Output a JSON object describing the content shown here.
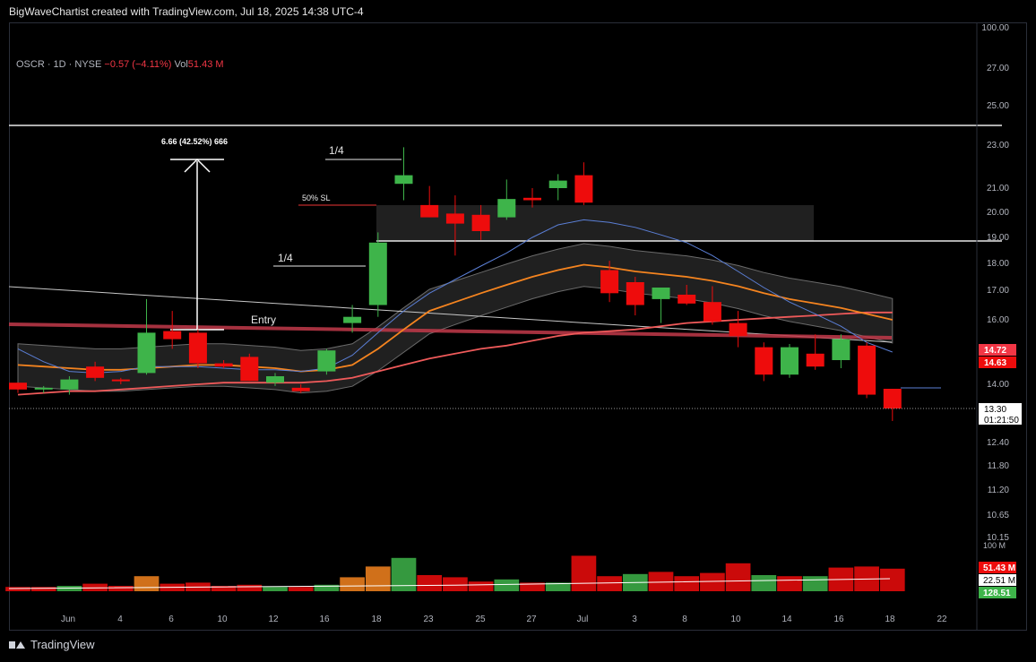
{
  "header": {
    "attribution": "BigWaveChartist created with TradingView.com, Jul 18, 2025 14:38 UTC-4"
  },
  "legend": {
    "symbol": "OSCR · 1D · NYSE",
    "change": "−0.57 (−4.11%)",
    "vol_label": "Vol",
    "vol_value": "51.43 M"
  },
  "footer": {
    "brand": "TradingView"
  },
  "colors": {
    "up": "#3eb44a",
    "down": "#ee0c0c",
    "ema_fast": "#5b7fd6",
    "ema_mid": "#f5841f",
    "ema_slow": "#ef5a5a",
    "trendline": "#c23a4a"
  },
  "chart_data": {
    "type": "candlestick",
    "price_axis": {
      "ticks": [
        "100.00",
        "27.00",
        "25.00",
        "23.00",
        "21.00",
        "20.00",
        "19.00",
        "18.00",
        "17.00",
        "16.00",
        "14.00",
        "12.40",
        "11.80",
        "11.20",
        "10.65",
        "10.15"
      ],
      "labels": [
        {
          "text": "14.72",
          "color": "#f23645"
        },
        {
          "text": "14.63",
          "color": "#ee0c0c"
        },
        {
          "text": "13.30",
          "color": "#000000"
        },
        {
          "text": "01:21:50",
          "color": "#000000"
        }
      ]
    },
    "volume_axis": {
      "top_label": "100 M",
      "labels": [
        {
          "text": "51.43 M",
          "color": "#ee0c0c"
        },
        {
          "text": "22.51 M",
          "color": "#ffffff"
        },
        {
          "text": "128.51",
          "color": "#3eb44a"
        }
      ]
    },
    "x_labels": [
      "Jun",
      "4",
      "6",
      "10",
      "12",
      "16",
      "18",
      "23",
      "25",
      "27",
      "Jul",
      "3",
      "8",
      "10",
      "14",
      "16",
      "18",
      "22"
    ],
    "candles": [
      {
        "o": 14.05,
        "h": 14.05,
        "l": 13.75,
        "c": 13.85
      },
      {
        "o": 13.85,
        "h": 13.95,
        "l": 13.75,
        "c": 13.9
      },
      {
        "o": 13.85,
        "h": 14.25,
        "l": 13.7,
        "c": 14.15
      },
      {
        "o": 14.55,
        "h": 14.7,
        "l": 14.1,
        "c": 14.2
      },
      {
        "o": 14.15,
        "h": 14.2,
        "l": 14.0,
        "c": 14.1
      },
      {
        "o": 14.35,
        "h": 16.7,
        "l": 14.3,
        "c": 15.6
      },
      {
        "o": 15.65,
        "h": 16.3,
        "l": 15.1,
        "c": 15.4
      },
      {
        "o": 15.6,
        "h": 15.7,
        "l": 14.5,
        "c": 14.65
      },
      {
        "o": 14.65,
        "h": 14.75,
        "l": 14.5,
        "c": 14.55
      },
      {
        "o": 14.85,
        "h": 14.95,
        "l": 14.1,
        "c": 14.1
      },
      {
        "o": 14.05,
        "h": 14.35,
        "l": 13.95,
        "c": 14.25
      },
      {
        "o": 13.9,
        "h": 14.0,
        "l": 13.75,
        "c": 13.8
      },
      {
        "o": 14.4,
        "h": 15.1,
        "l": 14.3,
        "c": 15.05
      },
      {
        "o": 15.9,
        "h": 16.5,
        "l": 15.6,
        "c": 16.1
      },
      {
        "o": 16.5,
        "h": 19.2,
        "l": 16.1,
        "c": 18.8
      },
      {
        "o": 21.2,
        "h": 22.9,
        "l": 20.5,
        "c": 21.6
      },
      {
        "o": 20.3,
        "h": 21.1,
        "l": 19.8,
        "c": 19.8
      },
      {
        "o": 19.95,
        "h": 20.7,
        "l": 18.3,
        "c": 19.55
      },
      {
        "o": 19.9,
        "h": 20.3,
        "l": 18.9,
        "c": 19.25
      },
      {
        "o": 19.8,
        "h": 21.4,
        "l": 19.7,
        "c": 20.55
      },
      {
        "o": 20.6,
        "h": 21.0,
        "l": 20.2,
        "c": 20.5
      },
      {
        "o": 21.0,
        "h": 21.65,
        "l": 20.5,
        "c": 21.35
      },
      {
        "o": 21.6,
        "h": 22.2,
        "l": 20.3,
        "c": 20.4
      },
      {
        "o": 17.75,
        "h": 18.1,
        "l": 16.6,
        "c": 16.9
      },
      {
        "o": 17.3,
        "h": 17.5,
        "l": 16.15,
        "c": 16.5
      },
      {
        "o": 16.7,
        "h": 17.05,
        "l": 15.9,
        "c": 17.1
      },
      {
        "o": 16.85,
        "h": 17.2,
        "l": 16.5,
        "c": 16.55
      },
      {
        "o": 16.6,
        "h": 17.15,
        "l": 15.85,
        "c": 15.95
      },
      {
        "o": 15.9,
        "h": 16.3,
        "l": 15.15,
        "c": 15.5
      },
      {
        "o": 15.15,
        "h": 15.3,
        "l": 14.1,
        "c": 14.3
      },
      {
        "o": 14.3,
        "h": 15.25,
        "l": 14.2,
        "c": 15.15
      },
      {
        "o": 14.95,
        "h": 15.55,
        "l": 14.45,
        "c": 14.55
      },
      {
        "o": 14.75,
        "h": 15.55,
        "l": 14.5,
        "c": 15.4
      },
      {
        "o": 15.2,
        "h": 15.3,
        "l": 13.6,
        "c": 13.7
      },
      {
        "o": 13.87,
        "h": 13.87,
        "l": 12.97,
        "c": 13.3
      }
    ],
    "volume_pct": [
      {
        "v": 4,
        "up": false
      },
      {
        "v": 4,
        "up": false
      },
      {
        "v": 5,
        "up": true
      },
      {
        "v": 7,
        "up": false
      },
      {
        "v": 5,
        "up": false
      },
      {
        "v": 14,
        "up": true,
        "color": "#f5841f"
      },
      {
        "v": 7,
        "up": false
      },
      {
        "v": 8,
        "up": false
      },
      {
        "v": 5,
        "up": false
      },
      {
        "v": 6,
        "up": false
      },
      {
        "v": 4,
        "up": true
      },
      {
        "v": 4,
        "up": false
      },
      {
        "v": 6,
        "up": true
      },
      {
        "v": 13,
        "up": true,
        "color": "#f5841f"
      },
      {
        "v": 23,
        "up": true,
        "color": "#f5841f"
      },
      {
        "v": 31,
        "up": true
      },
      {
        "v": 15,
        "up": false
      },
      {
        "v": 13,
        "up": false
      },
      {
        "v": 9,
        "up": false
      },
      {
        "v": 11,
        "up": true
      },
      {
        "v": 8,
        "up": false
      },
      {
        "v": 8,
        "up": true
      },
      {
        "v": 33,
        "up": false
      },
      {
        "v": 14,
        "up": false
      },
      {
        "v": 16,
        "up": true
      },
      {
        "v": 18,
        "up": false
      },
      {
        "v": 14,
        "up": false
      },
      {
        "v": 17,
        "up": false
      },
      {
        "v": 26,
        "up": false
      },
      {
        "v": 15,
        "up": true
      },
      {
        "v": 14,
        "up": false
      },
      {
        "v": 14,
        "up": true
      },
      {
        "v": 22,
        "up": false
      },
      {
        "v": 23,
        "up": false
      },
      {
        "v": 21,
        "up": false
      }
    ],
    "ema_fast": [
      15.1,
      14.7,
      14.4,
      14.35,
      14.4,
      14.55,
      14.55,
      14.55,
      14.5,
      14.45,
      14.45,
      14.4,
      14.5,
      14.9,
      15.6,
      16.3,
      16.9,
      17.4,
      17.9,
      18.4,
      19.0,
      19.5,
      19.7,
      19.6,
      19.4,
      19.1,
      18.8,
      18.3,
      17.7,
      17.1,
      16.6,
      16.2,
      15.8,
      15.3,
      15.0
    ],
    "ema_mid": [
      14.6,
      14.55,
      14.5,
      14.45,
      14.45,
      14.5,
      14.55,
      14.6,
      14.6,
      14.55,
      14.5,
      14.4,
      14.45,
      14.6,
      15.1,
      15.7,
      16.3,
      16.6,
      16.9,
      17.2,
      17.5,
      17.75,
      17.95,
      17.85,
      17.7,
      17.6,
      17.5,
      17.35,
      17.15,
      16.9,
      16.7,
      16.55,
      16.4,
      16.2,
      16.0
    ],
    "ema_slow": [
      13.7,
      13.75,
      13.8,
      13.8,
      13.85,
      13.9,
      13.95,
      14.0,
      14.05,
      14.05,
      14.05,
      14.05,
      14.1,
      14.2,
      14.4,
      14.6,
      14.8,
      14.95,
      15.1,
      15.2,
      15.35,
      15.5,
      15.6,
      15.65,
      15.7,
      15.8,
      15.9,
      15.95,
      16.0,
      16.05,
      16.1,
      16.15,
      16.2,
      16.25,
      16.25
    ],
    "annotations": {
      "entry_label": "Entry",
      "quarter_label_1": "1/4",
      "quarter_label_2": "1/4",
      "stop_label": "50% SL",
      "measure_label": "6.66 (42.52%) 666"
    }
  }
}
